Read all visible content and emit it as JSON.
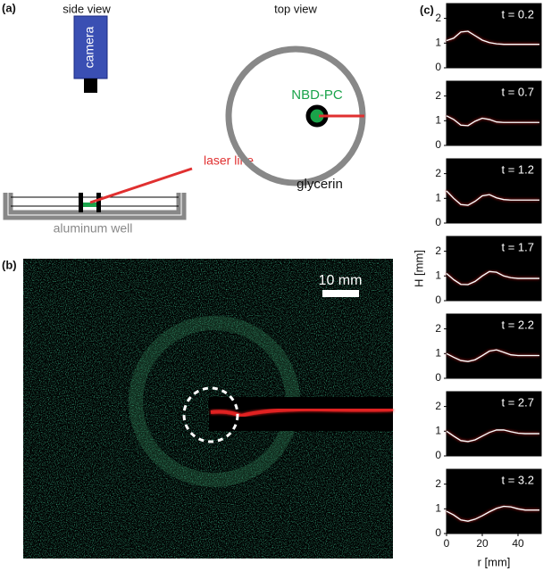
{
  "panel_a": {
    "label": "(a)",
    "side_view": "side view",
    "camera": "camera",
    "laser_line": "laser line",
    "aluminum_well": "aluminum well",
    "top_view": "top view",
    "dye": "NBD-PC",
    "liquid": "glycerin"
  },
  "panel_b": {
    "label": "(b)",
    "scale_bar": "10 mm"
  },
  "panel_c": {
    "label": "(c)",
    "ylabel": "H [mm]",
    "xlabel": "r [mm]"
  },
  "chart_data": [
    {
      "type": "line",
      "title": "t = 0.2",
      "x": [
        0,
        4,
        8,
        12,
        16,
        20,
        24,
        28,
        32,
        36,
        40,
        44,
        48,
        52
      ],
      "series": [
        {
          "color": "#ffffff",
          "values": [
            1.1,
            1.2,
            1.45,
            1.48,
            1.3,
            1.12,
            1.02,
            0.97,
            0.95,
            0.95,
            0.95,
            0.95,
            0.95,
            0.95
          ]
        }
      ],
      "xlim": [
        0,
        53
      ],
      "ylim": [
        0,
        2.6
      ],
      "yticks": [
        0,
        1,
        2
      ]
    },
    {
      "type": "line",
      "title": "t = 0.7",
      "x": [
        0,
        4,
        8,
        12,
        16,
        20,
        24,
        28,
        32,
        36,
        40,
        44,
        48,
        52
      ],
      "series": [
        {
          "color": "#ffffff",
          "values": [
            1.2,
            1.05,
            0.82,
            0.8,
            0.98,
            1.1,
            1.05,
            0.95,
            0.93,
            0.93,
            0.93,
            0.93,
            0.93,
            0.93
          ]
        }
      ],
      "xlim": [
        0,
        53
      ],
      "ylim": [
        0,
        2.6
      ],
      "yticks": [
        0,
        1,
        2
      ]
    },
    {
      "type": "line",
      "title": "t = 1.2",
      "x": [
        0,
        4,
        8,
        12,
        16,
        20,
        24,
        28,
        32,
        36,
        40,
        44,
        48,
        52
      ],
      "series": [
        {
          "color": "#ffffff",
          "values": [
            1.3,
            1.0,
            0.75,
            0.72,
            0.88,
            1.1,
            1.15,
            1.02,
            0.95,
            0.93,
            0.93,
            0.93,
            0.93,
            0.93
          ]
        }
      ],
      "xlim": [
        0,
        53
      ],
      "ylim": [
        0,
        2.6
      ],
      "yticks": [
        0,
        1,
        2
      ]
    },
    {
      "type": "line",
      "title": "t = 1.7",
      "x": [
        0,
        4,
        8,
        12,
        16,
        20,
        24,
        28,
        32,
        36,
        40,
        44,
        48,
        52
      ],
      "series": [
        {
          "color": "#ffffff",
          "values": [
            1.1,
            0.85,
            0.66,
            0.65,
            0.78,
            1.0,
            1.18,
            1.15,
            1.0,
            0.93,
            0.9,
            0.9,
            0.9,
            0.9
          ]
        }
      ],
      "xlim": [
        0,
        53
      ],
      "ylim": [
        0,
        2.6
      ],
      "yticks": [
        0,
        1,
        2
      ]
    },
    {
      "type": "line",
      "title": "t = 2.2",
      "x": [
        0,
        4,
        8,
        12,
        16,
        20,
        24,
        28,
        32,
        36,
        40,
        44,
        48,
        52
      ],
      "series": [
        {
          "color": "#ffffff",
          "values": [
            1.0,
            0.85,
            0.72,
            0.68,
            0.75,
            0.92,
            1.1,
            1.15,
            1.05,
            0.95,
            0.92,
            0.92,
            0.92,
            0.92
          ]
        }
      ],
      "xlim": [
        0,
        53
      ],
      "ylim": [
        0,
        2.6
      ],
      "yticks": [
        0,
        1,
        2
      ]
    },
    {
      "type": "line",
      "title": "t = 2.7",
      "x": [
        0,
        4,
        8,
        12,
        16,
        20,
        24,
        28,
        32,
        36,
        40,
        44,
        48,
        52
      ],
      "series": [
        {
          "color": "#ffffff",
          "values": [
            1.0,
            0.8,
            0.62,
            0.58,
            0.65,
            0.8,
            0.95,
            1.05,
            1.05,
            0.98,
            0.92,
            0.9,
            0.9,
            0.9
          ]
        }
      ],
      "xlim": [
        0,
        53
      ],
      "ylim": [
        0,
        2.6
      ],
      "yticks": [
        0,
        1,
        2
      ]
    },
    {
      "type": "line",
      "title": "t = 3.2",
      "x": [
        0,
        4,
        8,
        12,
        16,
        20,
        24,
        28,
        32,
        36,
        40,
        44,
        48,
        52
      ],
      "series": [
        {
          "color": "#ffffff",
          "values": [
            0.9,
            0.75,
            0.55,
            0.5,
            0.58,
            0.72,
            0.88,
            1.02,
            1.1,
            1.08,
            1.0,
            0.95,
            0.95,
            0.95
          ]
        }
      ],
      "xlim": [
        0,
        53
      ],
      "ylim": [
        0,
        2.6
      ],
      "yticks": [
        0,
        1,
        2
      ],
      "xticks": [
        0,
        20,
        40
      ]
    }
  ]
}
